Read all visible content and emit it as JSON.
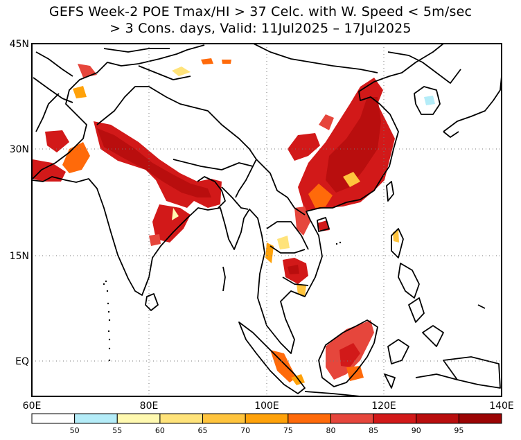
{
  "title": {
    "line1": "GEFS Week-2 POE Tmax/HI > 37 Celc. with W. Speed < 5m/sec",
    "line2": "> 3 Cons. days, Valid: 11Jul2025 – 17Jul2025"
  },
  "map": {
    "lon_range": [
      60,
      140
    ],
    "lat_range": [
      -6,
      45
    ],
    "lat_labels": [
      "45N",
      "30N",
      "15N",
      "EQ"
    ],
    "lon_labels": [
      "60E",
      "80E",
      "100E",
      "120E",
      "140E"
    ],
    "gridlines": "dotted"
  },
  "colorbar": {
    "labels": [
      "50",
      "55",
      "60",
      "65",
      "70",
      "75",
      "80",
      "85",
      "90",
      "95"
    ],
    "colors": [
      "#ffffff",
      "#b4ecf8",
      "#fff9b0",
      "#ffe37a",
      "#ffc43d",
      "#ffa20a",
      "#ff6a0a",
      "#e6463c",
      "#d21919",
      "#b90e0e",
      "#9b0404"
    ]
  }
}
